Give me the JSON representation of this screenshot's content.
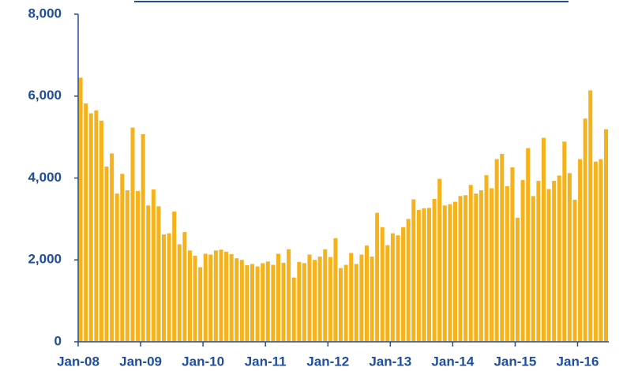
{
  "chart_data": {
    "type": "bar",
    "categories": [
      "Jan-08",
      null,
      null,
      null,
      null,
      null,
      null,
      null,
      null,
      null,
      null,
      null,
      "Jan-09",
      null,
      null,
      null,
      null,
      null,
      null,
      null,
      null,
      null,
      null,
      null,
      "Jan-10",
      null,
      null,
      null,
      null,
      null,
      null,
      null,
      null,
      null,
      null,
      null,
      "Jan-11",
      null,
      null,
      null,
      null,
      null,
      null,
      null,
      null,
      null,
      null,
      null,
      "Jan-12",
      null,
      null,
      null,
      null,
      null,
      null,
      null,
      null,
      null,
      null,
      null,
      "Jan-13",
      null,
      null,
      null,
      null,
      null,
      null,
      null,
      null,
      null,
      null,
      null,
      "Jan-14",
      null,
      null,
      null,
      null,
      null,
      null,
      null,
      null,
      null,
      null,
      null,
      "Jan-15",
      null,
      null,
      null,
      null,
      null,
      null,
      null,
      null,
      null,
      null,
      null,
      "Jan-16",
      null,
      null,
      null,
      null,
      null
    ],
    "values": [
      6450,
      5820,
      5580,
      5650,
      5400,
      4280,
      4600,
      3620,
      4100,
      3700,
      5230,
      3680,
      5070,
      3330,
      3720,
      3310,
      2620,
      2650,
      3180,
      2380,
      2680,
      2230,
      2100,
      1820,
      2150,
      2130,
      2230,
      2250,
      2200,
      2140,
      2040,
      2000,
      1870,
      1900,
      1840,
      1920,
      1960,
      1880,
      2150,
      1930,
      2260,
      1570,
      1950,
      1920,
      2130,
      2000,
      2080,
      2260,
      2070,
      2530,
      1800,
      1880,
      2170,
      1900,
      2130,
      2350,
      2080,
      3150,
      2800,
      2360,
      2650,
      2600,
      2800,
      3000,
      3480,
      3220,
      3260,
      3270,
      3490,
      3980,
      3330,
      3360,
      3420,
      3560,
      3580,
      3830,
      3620,
      3700,
      4070,
      3750,
      4460,
      4590,
      3800,
      4260,
      3030,
      3950,
      4730,
      3560,
      3930,
      4980,
      3730,
      3930,
      4060,
      4890,
      4120,
      3470,
      4460,
      5450,
      6140,
      4400,
      4460,
      5190
    ],
    "color": "#f5b21a",
    "ylim": [
      0,
      8000
    ],
    "yticks": [
      0,
      {
        "value": 2000,
        "label": "2,000"
      },
      {
        "value": 4000,
        "label": "4,000"
      },
      {
        "value": 6000,
        "label": "6,000"
      },
      {
        "value": 8000,
        "label": "8,000"
      }
    ]
  }
}
